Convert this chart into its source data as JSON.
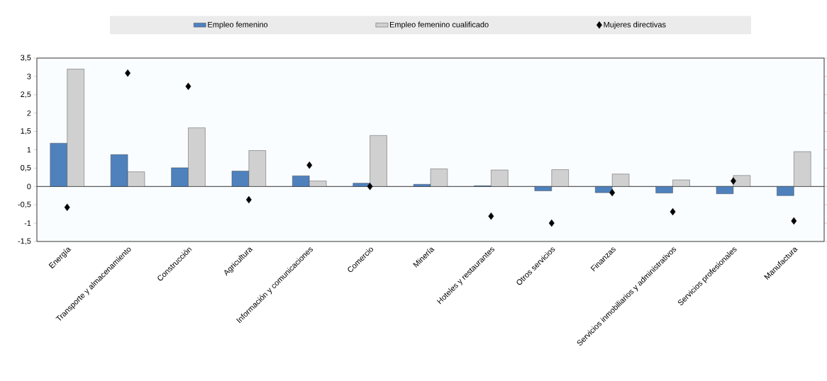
{
  "chart_data": {
    "type": "bar",
    "categories": [
      "Energía",
      "Transporte y almacenamiento",
      "Construcción",
      "Agricultura",
      "Información y comunicaciones",
      "Comercio",
      "Minería",
      "Hoteles y restaurantes",
      "Otros servicios",
      "Finanzas",
      "Servicios inmobiliarios y administrativos",
      "Servicios profesionales",
      "Manufactura"
    ],
    "series": [
      {
        "name": "Empleo femenino",
        "color": "#4f81bd",
        "values": [
          1.18,
          0.87,
          0.51,
          0.42,
          0.29,
          0.09,
          0.06,
          0.02,
          -0.12,
          -0.17,
          -0.18,
          -0.2,
          -0.25
        ]
      },
      {
        "name": "Empleo femenino cualificado",
        "color": "#d0d0d0",
        "values": [
          3.2,
          0.4,
          1.6,
          0.98,
          0.15,
          1.39,
          0.48,
          0.45,
          0.46,
          0.34,
          0.18,
          0.3,
          0.95
        ]
      },
      {
        "name": "Mujeres directivas",
        "type": "scatter",
        "marker": "diamond",
        "color": "#000000",
        "values": [
          -0.57,
          3.09,
          2.73,
          -0.36,
          0.58,
          0.0,
          null,
          -0.81,
          -1.0,
          -0.17,
          -0.69,
          0.15,
          -0.94
        ]
      }
    ],
    "ylim": [
      -1.5,
      3.5
    ],
    "yticks": [
      {
        "value": -1.5,
        "label": "-1,5"
      },
      {
        "value": -1,
        "label": "-1"
      },
      {
        "value": -0.5,
        "label": "-0,5"
      },
      0,
      {
        "value": 0.5,
        "label": "0,5"
      },
      1,
      {
        "value": 1.5,
        "label": "1,5"
      },
      2,
      {
        "value": 2.5,
        "label": "2,5"
      },
      3,
      {
        "value": 3.5,
        "label": "3,5"
      }
    ],
    "legend": "top"
  }
}
